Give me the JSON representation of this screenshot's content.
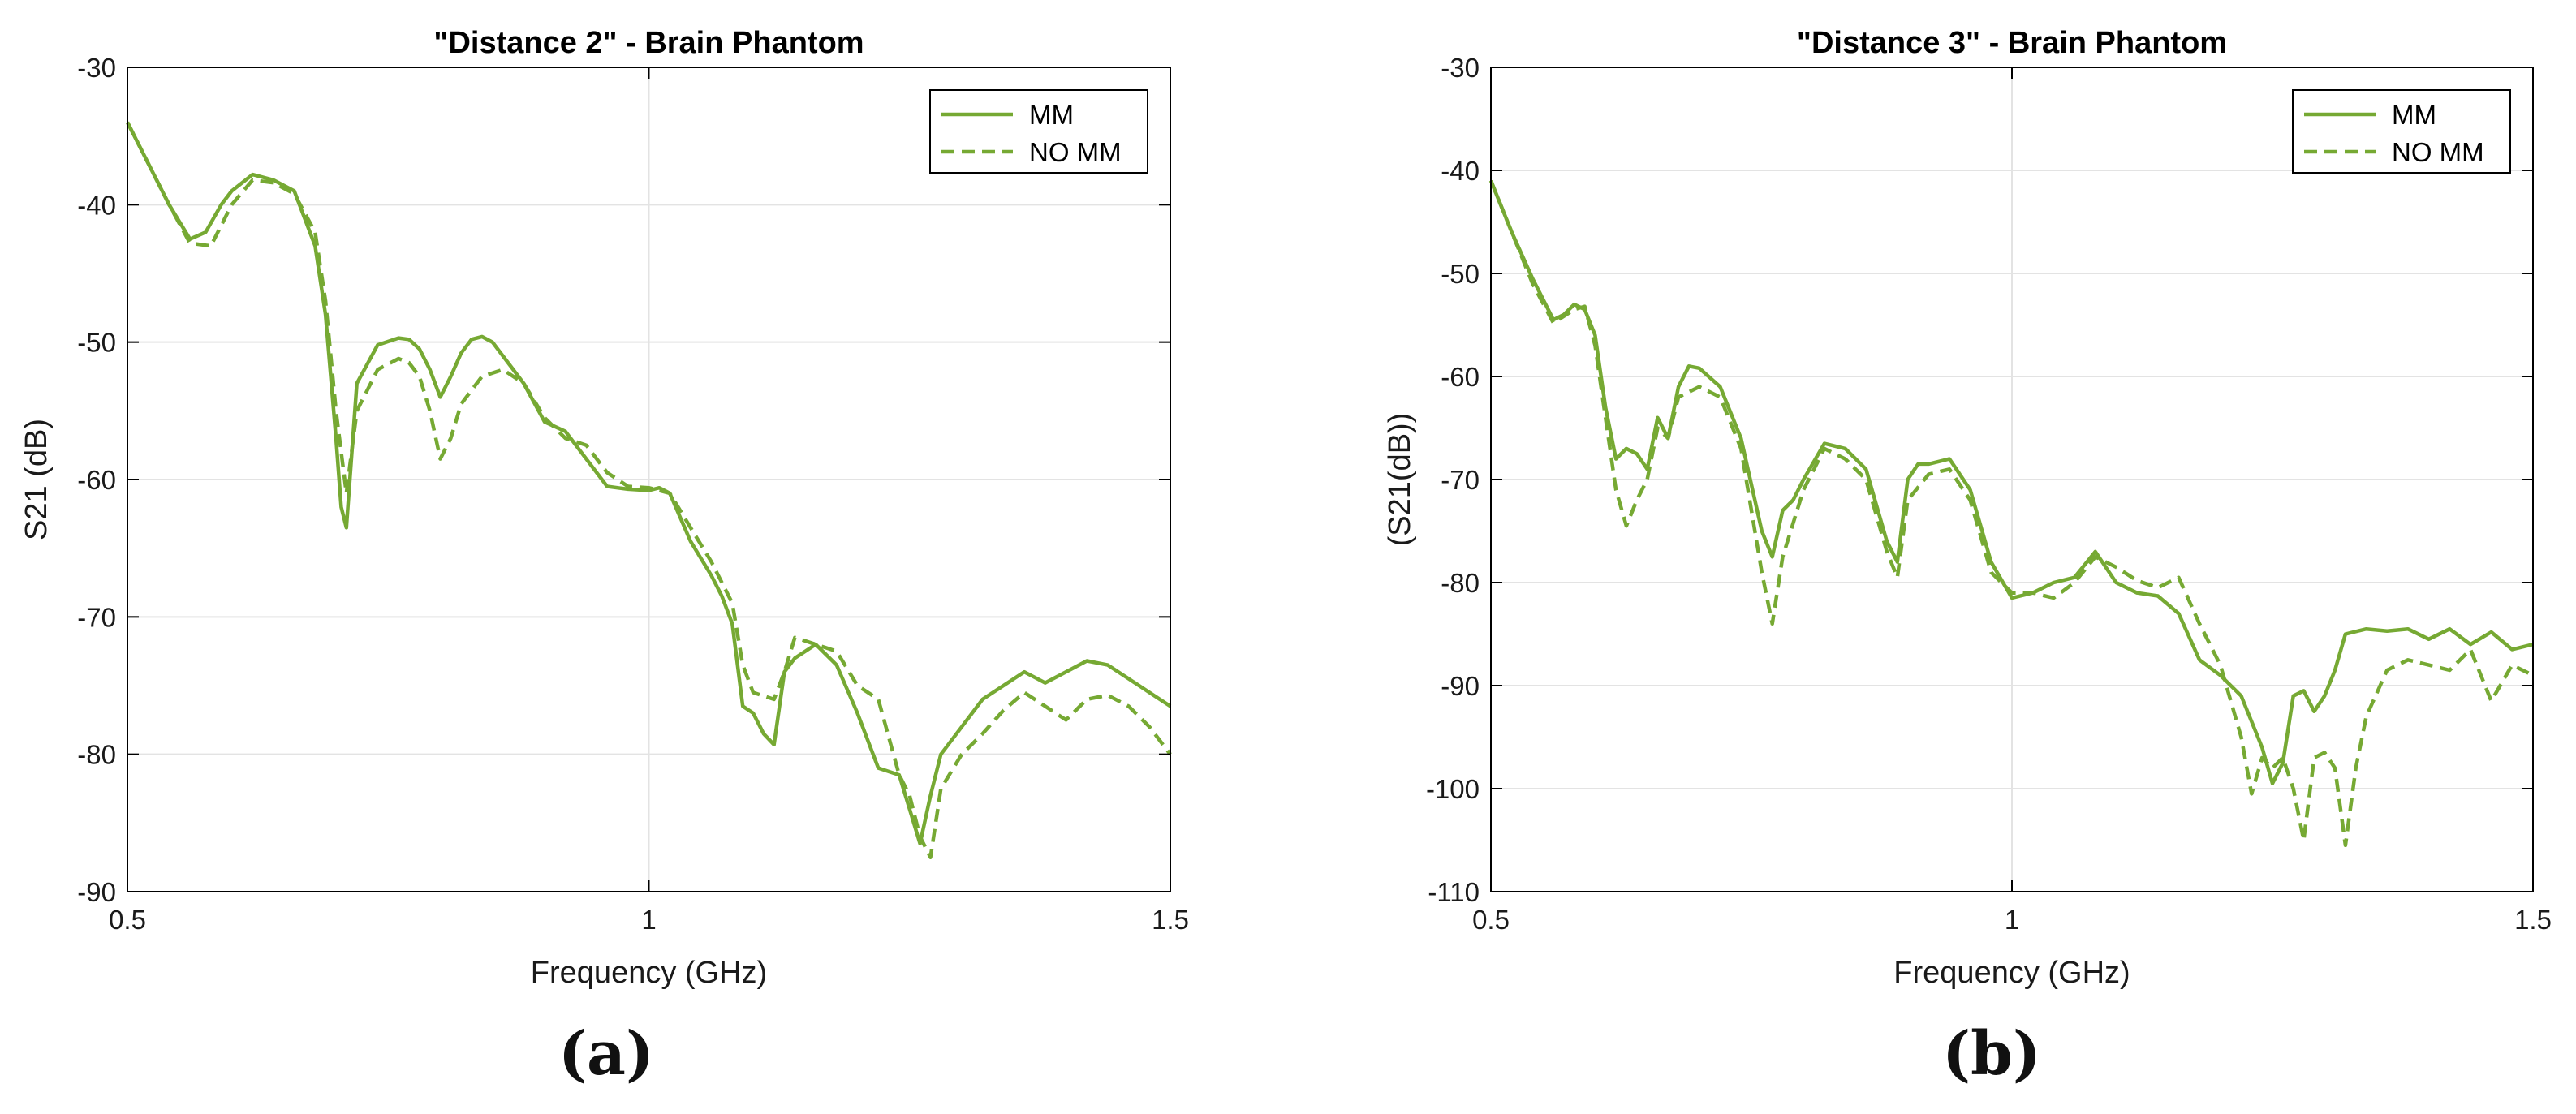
{
  "colors": {
    "series": "#76a933",
    "grid": "#e3e3e3",
    "axis": "#000000",
    "text": "#1a1a1a"
  },
  "panel_labels": [
    "(a)",
    "(b)"
  ],
  "chart_data": [
    {
      "type": "line",
      "title": "\"Distance 2\" - Brain Phantom",
      "xlabel": "Frequency (GHz)",
      "ylabel": "S21 (dB)",
      "xlim": [
        0.5,
        1.5
      ],
      "ylim": [
        -90,
        -30
      ],
      "xticks": [
        0.5,
        1,
        1.5
      ],
      "xtick_labels": [
        "0.5",
        "1",
        "1.5"
      ],
      "yticks": [
        -90,
        -80,
        -70,
        -60,
        -50,
        -40,
        -30
      ],
      "ytick_labels": [
        "-90",
        "-80",
        "-70",
        "-60",
        "-50",
        "-40",
        "-30"
      ],
      "grid": true,
      "legend_position": "top-right",
      "series": [
        {
          "name": "MM",
          "style": "solid",
          "x": [
            0.5,
            0.52,
            0.54,
            0.56,
            0.575,
            0.59,
            0.6,
            0.62,
            0.64,
            0.66,
            0.68,
            0.69,
            0.7,
            0.705,
            0.71,
            0.72,
            0.74,
            0.76,
            0.77,
            0.78,
            0.79,
            0.8,
            0.81,
            0.82,
            0.83,
            0.84,
            0.85,
            0.86,
            0.88,
            0.9,
            0.92,
            0.94,
            0.96,
            0.98,
            1.0,
            1.01,
            1.02,
            1.04,
            1.06,
            1.07,
            1.08,
            1.09,
            1.1,
            1.11,
            1.12,
            1.13,
            1.14,
            1.16,
            1.18,
            1.2,
            1.22,
            1.24,
            1.25,
            1.26,
            1.27,
            1.28,
            1.3,
            1.32,
            1.34,
            1.36,
            1.38,
            1.4,
            1.42,
            1.44,
            1.46,
            1.48,
            1.5
          ],
          "y": [
            -34,
            -37,
            -40,
            -42.5,
            -42,
            -40,
            -39,
            -37.8,
            -38.2,
            -39,
            -43,
            -48,
            -57,
            -62,
            -63.5,
            -53,
            -50.2,
            -49.7,
            -49.8,
            -50.5,
            -52,
            -54,
            -52.5,
            -50.8,
            -49.8,
            -49.6,
            -50,
            -51,
            -53,
            -55.8,
            -56.5,
            -58.5,
            -60.5,
            -60.7,
            -60.8,
            -60.6,
            -61,
            -64.5,
            -67,
            -68.5,
            -70.5,
            -76.5,
            -77,
            -78.5,
            -79.3,
            -74,
            -73,
            -72,
            -73.5,
            -77,
            -81,
            -81.5,
            -84,
            -86.5,
            -83,
            -80,
            -78,
            -76,
            -75,
            -74,
            -74.8,
            -74,
            -73.2,
            -73.5,
            -74.5,
            -75.5,
            -76.5
          ]
        },
        {
          "name": "NO MM",
          "style": "dashed",
          "x": [
            0.5,
            0.52,
            0.54,
            0.56,
            0.58,
            0.6,
            0.62,
            0.64,
            0.66,
            0.68,
            0.69,
            0.7,
            0.71,
            0.72,
            0.74,
            0.76,
            0.77,
            0.78,
            0.79,
            0.8,
            0.81,
            0.82,
            0.84,
            0.86,
            0.88,
            0.9,
            0.92,
            0.94,
            0.96,
            0.98,
            1.0,
            1.02,
            1.04,
            1.06,
            1.08,
            1.09,
            1.1,
            1.12,
            1.13,
            1.14,
            1.16,
            1.18,
            1.2,
            1.22,
            1.24,
            1.25,
            1.26,
            1.27,
            1.28,
            1.3,
            1.32,
            1.34,
            1.36,
            1.38,
            1.4,
            1.42,
            1.44,
            1.46,
            1.48,
            1.5
          ],
          "y": [
            -34,
            -37,
            -40,
            -42.8,
            -43,
            -40,
            -38.2,
            -38.4,
            -39.2,
            -42,
            -47,
            -55,
            -61,
            -55,
            -52,
            -51.2,
            -51.5,
            -52.5,
            -55,
            -58.5,
            -57,
            -54.5,
            -52.5,
            -52,
            -53,
            -55.5,
            -57,
            -57.5,
            -59.5,
            -60.5,
            -60.6,
            -61,
            -63.5,
            -66,
            -69,
            -73.5,
            -75.5,
            -76,
            -74,
            -71.5,
            -72,
            -72.5,
            -75,
            -76,
            -81.5,
            -83,
            -86,
            -87.5,
            -82.5,
            -80,
            -78.5,
            -76.8,
            -75.5,
            -76.5,
            -77.5,
            -76,
            -75.7,
            -76.5,
            -78,
            -80
          ]
        }
      ]
    },
    {
      "type": "line",
      "title": "\"Distance 3\" - Brain Phantom",
      "xlabel": "Frequency (GHz)",
      "ylabel": "(S21(dB))",
      "xlim": [
        0.5,
        1.5
      ],
      "ylim": [
        -110,
        -30
      ],
      "xticks": [
        0.5,
        1,
        1.5
      ],
      "xtick_labels": [
        "0.5",
        "1",
        "1.5"
      ],
      "yticks": [
        -110,
        -100,
        -90,
        -80,
        -70,
        -60,
        -50,
        -40,
        -30
      ],
      "ytick_labels": [
        "-110",
        "-100",
        "-90",
        "-80",
        "-70",
        "-60",
        "-50",
        "-40",
        "-30"
      ],
      "grid": true,
      "legend_position": "top-right",
      "series": [
        {
          "name": "MM",
          "style": "solid",
          "x": [
            0.5,
            0.52,
            0.54,
            0.56,
            0.57,
            0.58,
            0.59,
            0.6,
            0.61,
            0.62,
            0.63,
            0.64,
            0.65,
            0.66,
            0.67,
            0.68,
            0.69,
            0.7,
            0.72,
            0.74,
            0.76,
            0.77,
            0.78,
            0.79,
            0.8,
            0.82,
            0.84,
            0.86,
            0.88,
            0.89,
            0.9,
            0.91,
            0.92,
            0.94,
            0.96,
            0.98,
            1.0,
            1.02,
            1.04,
            1.06,
            1.08,
            1.09,
            1.1,
            1.12,
            1.14,
            1.16,
            1.18,
            1.2,
            1.22,
            1.24,
            1.25,
            1.26,
            1.27,
            1.28,
            1.29,
            1.3,
            1.31,
            1.32,
            1.34,
            1.36,
            1.38,
            1.4,
            1.42,
            1.44,
            1.46,
            1.48,
            1.5
          ],
          "y": [
            -41,
            -46,
            -50.5,
            -54.5,
            -54,
            -53,
            -53.5,
            -56,
            -63,
            -68,
            -67,
            -67.5,
            -69,
            -64,
            -66,
            -61,
            -59,
            -59.2,
            -61,
            -66,
            -75,
            -77.5,
            -73,
            -72,
            -70,
            -66.5,
            -67,
            -69,
            -76,
            -78,
            -70,
            -68.5,
            -68.5,
            -68,
            -71,
            -78,
            -81.5,
            -81,
            -80,
            -79.5,
            -77,
            -78.5,
            -80,
            -81,
            -81.3,
            -83,
            -87.5,
            -89,
            -91,
            -96,
            -99.5,
            -97.5,
            -91,
            -90.5,
            -92.5,
            -91,
            -88.5,
            -85,
            -84.5,
            -84.7,
            -84.5,
            -85.5,
            -84.5,
            -86,
            -84.8,
            -86.5,
            -86
          ]
        },
        {
          "name": "NO MM",
          "style": "dashed",
          "x": [
            0.5,
            0.52,
            0.54,
            0.56,
            0.58,
            0.59,
            0.6,
            0.61,
            0.62,
            0.63,
            0.64,
            0.65,
            0.66,
            0.67,
            0.68,
            0.7,
            0.72,
            0.74,
            0.76,
            0.77,
            0.78,
            0.8,
            0.82,
            0.84,
            0.86,
            0.88,
            0.89,
            0.9,
            0.92,
            0.94,
            0.96,
            0.98,
            1.0,
            1.02,
            1.04,
            1.06,
            1.08,
            1.1,
            1.12,
            1.14,
            1.16,
            1.18,
            1.2,
            1.22,
            1.23,
            1.24,
            1.25,
            1.26,
            1.27,
            1.28,
            1.29,
            1.3,
            1.31,
            1.32,
            1.33,
            1.34,
            1.36,
            1.38,
            1.4,
            1.42,
            1.44,
            1.46,
            1.48,
            1.5
          ],
          "y": [
            -41,
            -46,
            -51,
            -54.8,
            -53.5,
            -53.2,
            -57,
            -64,
            -71,
            -74.5,
            -72,
            -70,
            -65,
            -66,
            -62,
            -61,
            -62,
            -67,
            -79,
            -84,
            -77.5,
            -71,
            -67,
            -68,
            -70,
            -77,
            -79.5,
            -72,
            -69.5,
            -69,
            -72,
            -79,
            -81,
            -81,
            -81.5,
            -80,
            -77.5,
            -78.5,
            -79.8,
            -80.5,
            -79.5,
            -84,
            -88,
            -95,
            -100.5,
            -97,
            -98,
            -97,
            -100,
            -105,
            -97,
            -96.5,
            -98,
            -105.5,
            -98,
            -93,
            -88.5,
            -87.5,
            -88,
            -88.5,
            -86.5,
            -91.5,
            -88,
            -89
          ]
        }
      ]
    }
  ]
}
